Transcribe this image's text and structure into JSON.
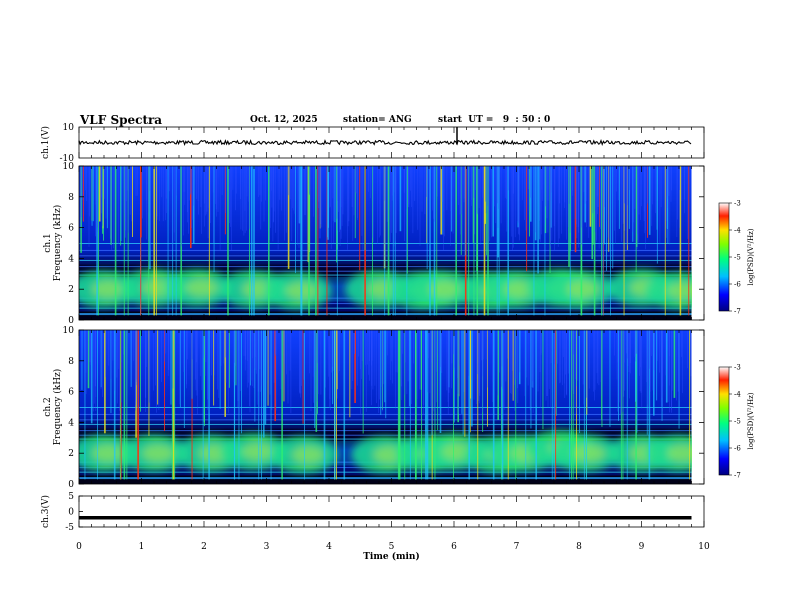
{
  "header": {
    "title": "VLF Spectra",
    "date": "Oct. 12, 2025",
    "station": "station= ANG",
    "start": "start  UT =   9  : 50 : 0"
  },
  "chart_data": [
    {
      "type": "line",
      "panel": "ch1-waveform",
      "ylabel": "ch.1(V)",
      "ylim": [
        -10,
        10
      ],
      "y_ticks": [
        "10",
        "-10"
      ],
      "x": [
        0,
        9.8
      ],
      "values": [
        0,
        0
      ],
      "noise_amplitude": 1.2
    },
    {
      "type": "heatmap",
      "panel": "ch1-spectrogram",
      "ylabel": "ch.1\nFrequency  (kHz)",
      "ylim": [
        0,
        10
      ],
      "y_ticks": [
        "0",
        "2",
        "4",
        "6",
        "8",
        "10"
      ],
      "xlim": [
        0,
        10
      ],
      "data_end_min": 9.8,
      "blobs_min_khz": [
        [
          0.4,
          2.0
        ],
        [
          1.2,
          2.1
        ],
        [
          1.9,
          2.1
        ],
        [
          2.8,
          2.0
        ],
        [
          3.5,
          1.9
        ],
        [
          4.8,
          2.0
        ],
        [
          5.5,
          1.9
        ],
        [
          5.8,
          2.0
        ],
        [
          6.6,
          1.9
        ],
        [
          7.0,
          2.0
        ],
        [
          7.7,
          2.1
        ],
        [
          8.0,
          2.0
        ],
        [
          9.0,
          2.1
        ],
        [
          9.6,
          1.9
        ]
      ]
    },
    {
      "type": "heatmap",
      "panel": "ch2-spectrogram",
      "ylabel": "ch.2\nFrequency  (kHz)",
      "ylim": [
        0,
        10
      ],
      "y_ticks": [
        "0",
        "2",
        "4",
        "6",
        "8",
        "10"
      ],
      "xlim": [
        0,
        10
      ],
      "data_end_min": 9.8,
      "blobs_min_khz": [
        [
          0.4,
          2.0
        ],
        [
          1.2,
          2.0
        ],
        [
          2.1,
          2.0
        ],
        [
          2.8,
          2.1
        ],
        [
          3.6,
          1.9
        ],
        [
          4.9,
          1.9
        ],
        [
          5.6,
          2.0
        ],
        [
          6.0,
          2.1
        ],
        [
          6.7,
          1.9
        ],
        [
          7.1,
          2.0
        ],
        [
          7.7,
          2.3
        ],
        [
          8.1,
          2.0
        ],
        [
          9.0,
          2.0
        ],
        [
          9.6,
          2.0
        ]
      ]
    },
    {
      "type": "line",
      "panel": "ch3-waveform",
      "ylabel": "ch.3(V)",
      "ylim": [
        -5,
        5
      ],
      "y_ticks": [
        "5",
        "0",
        "-5"
      ],
      "x": [
        0,
        9.8
      ],
      "values": [
        -2,
        -2
      ]
    }
  ],
  "xaxis": {
    "label": "Time  (min)",
    "ticks": [
      "0",
      "1",
      "2",
      "3",
      "4",
      "5",
      "6",
      "7",
      "8",
      "9",
      "10"
    ]
  },
  "colorbar": {
    "label": "log(PSD)(V²/Hz)",
    "ticks": [
      "-3",
      "-4",
      "-5",
      "-6",
      "-7"
    ],
    "range": [
      -7,
      -3
    ]
  }
}
